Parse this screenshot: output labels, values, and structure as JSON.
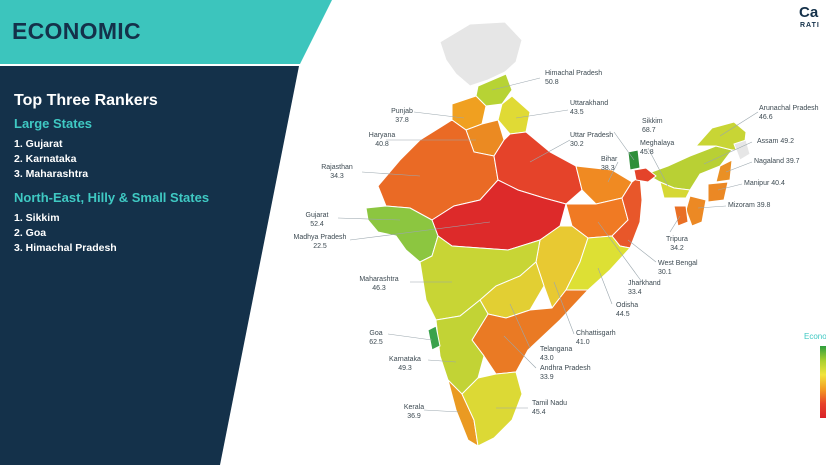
{
  "header": {
    "title": "ECONOMIC"
  },
  "brand": {
    "line1": "Ca",
    "line2": "RATI"
  },
  "rankers": {
    "heading": "Top Three Rankers",
    "large_states": {
      "label": "Large States",
      "items": [
        "1. Gujarat",
        "2. Karnataka",
        "3. Maharashtra"
      ]
    },
    "ne_small_states": {
      "label": "North-East, Hilly & Small States",
      "items": [
        "1. Sikkim",
        "2. Goa",
        "3. Himachal Pradesh"
      ]
    }
  },
  "states": [
    {
      "name": "Himachal Pradesh",
      "value": "50.8"
    },
    {
      "name": "Punjab",
      "value": "37.8"
    },
    {
      "name": "Uttarakhand",
      "value": "43.5"
    },
    {
      "name": "Haryana",
      "value": "40.8"
    },
    {
      "name": "Uttar Pradesh",
      "value": "30.2"
    },
    {
      "name": "Rajasthan",
      "value": "34.3"
    },
    {
      "name": "Sikkim",
      "value": "68.7"
    },
    {
      "name": "Bihar",
      "value": "38.3"
    },
    {
      "name": "Meghalaya",
      "value": "45.8"
    },
    {
      "name": "Arunachal Pradesh",
      "value": "46.6"
    },
    {
      "name": "Assam",
      "value": "49.2"
    },
    {
      "name": "Nagaland",
      "value": "39.7"
    },
    {
      "name": "Manipur",
      "value": "40.4"
    },
    {
      "name": "Mizoram",
      "value": "39.8"
    },
    {
      "name": "Tripura",
      "value": "34.2"
    },
    {
      "name": "Gujarat",
      "value": "52.4"
    },
    {
      "name": "Madhya Pradesh",
      "value": "22.5"
    },
    {
      "name": "West Bengal",
      "value": "30.1"
    },
    {
      "name": "Jharkhand",
      "value": "33.4"
    },
    {
      "name": "Maharashtra",
      "value": "46.3"
    },
    {
      "name": "Odisha",
      "value": "44.5"
    },
    {
      "name": "Chhattisgarh",
      "value": "41.0"
    },
    {
      "name": "Goa",
      "value": "62.5"
    },
    {
      "name": "Telangana",
      "value": "43.0"
    },
    {
      "name": "Karnataka",
      "value": "49.3"
    },
    {
      "name": "Andhra Pradesh",
      "value": "33.9"
    },
    {
      "name": "Tamil Nadu",
      "value": "45.4"
    },
    {
      "name": "Kerala",
      "value": "36.9"
    }
  ],
  "legend": {
    "title": "Economic"
  },
  "colors": {
    "header_band": "#3cc5bd",
    "panel": "#14314a",
    "accent_text": "#3fc9c3",
    "high": "#2e9e3e",
    "mid": "#f2e43b",
    "low": "#d9222a"
  }
}
